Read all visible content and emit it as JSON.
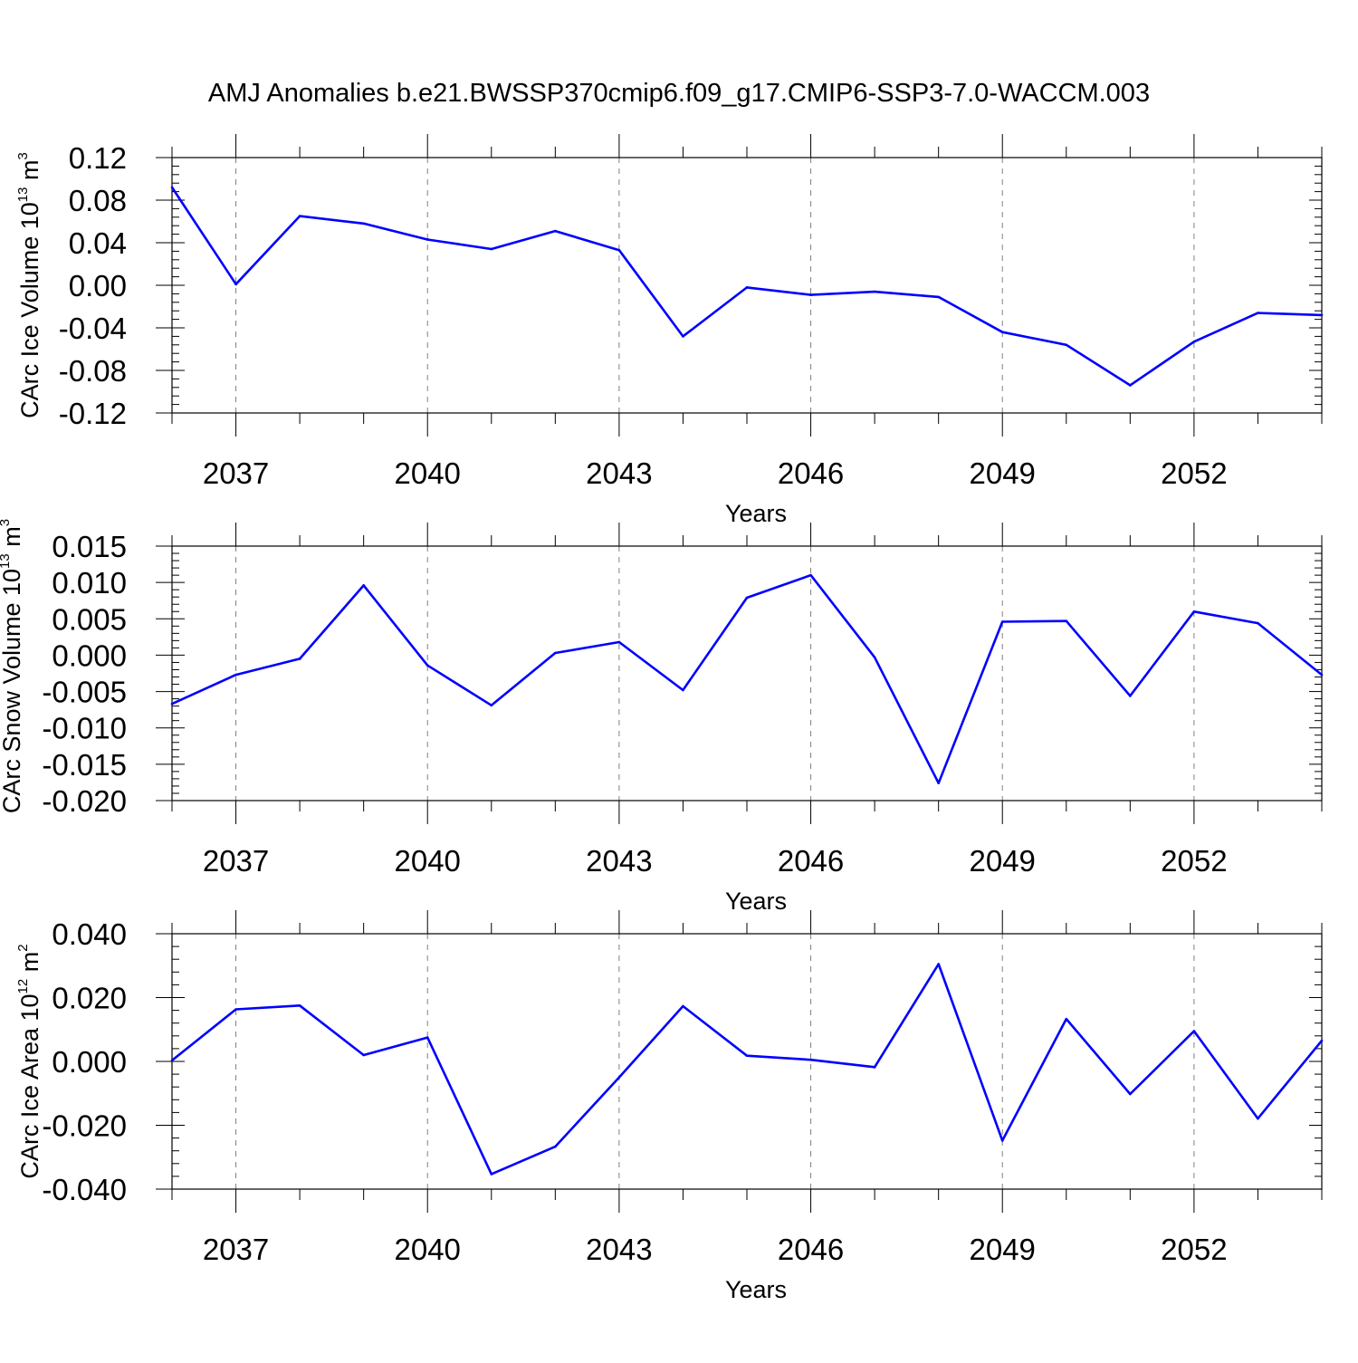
{
  "figure_title": "AMJ Anomalies b.e21.BWSSP370cmip6.f09_g17.CMIP6-SSP3-7.0-WACCM.003",
  "colors": {
    "line": "#0000ff",
    "axis": "#000000",
    "grid": "#808080"
  },
  "chart_data": [
    {
      "type": "line",
      "ylabel": {
        "text": "CArc Ice Volume 10",
        "exp": "13",
        "unit": " m",
        "unit_exp": "3"
      },
      "xlabel": "Years",
      "xlim": [
        2036,
        2054
      ],
      "ylim": [
        -0.12,
        0.12
      ],
      "yticks": [
        -0.12,
        -0.08,
        -0.04,
        0.0,
        0.04,
        0.08,
        0.12
      ],
      "ytick_labels": [
        "-0.12",
        "-0.08",
        "-0.04",
        "0.00",
        "0.04",
        "0.08",
        "0.12"
      ],
      "xticks": [
        2037,
        2040,
        2043,
        2046,
        2049,
        2052
      ],
      "xtick_labels": [
        "2037",
        "2040",
        "2043",
        "2046",
        "2049",
        "2052"
      ],
      "x": [
        2036,
        2037,
        2038,
        2039,
        2040,
        2041,
        2042,
        2043,
        2044,
        2045,
        2046,
        2047,
        2048,
        2049,
        2050,
        2051,
        2052,
        2053,
        2054
      ],
      "values": [
        0.092,
        0.001,
        0.065,
        0.058,
        0.043,
        0.034,
        0.051,
        0.033,
        -0.048,
        -0.002,
        -0.009,
        -0.006,
        -0.011,
        -0.044,
        -0.056,
        -0.094,
        -0.053,
        -0.026,
        -0.028
      ]
    },
    {
      "type": "line",
      "ylabel": {
        "text": "CArc Snow Volume 10",
        "exp": "13",
        "unit": " m",
        "unit_exp": "3"
      },
      "xlabel": "Years",
      "xlim": [
        2036,
        2054
      ],
      "ylim": [
        -0.02,
        0.015
      ],
      "yticks": [
        -0.02,
        -0.015,
        -0.01,
        -0.005,
        0.0,
        0.005,
        0.01,
        0.015
      ],
      "ytick_labels": [
        "-0.020",
        "-0.015",
        "-0.010",
        "-0.005",
        "0.000",
        "0.005",
        "0.010",
        "0.015"
      ],
      "xticks": [
        2037,
        2040,
        2043,
        2046,
        2049,
        2052
      ],
      "xtick_labels": [
        "2037",
        "2040",
        "2043",
        "2046",
        "2049",
        "2052"
      ],
      "x": [
        2036,
        2037,
        2038,
        2039,
        2040,
        2041,
        2042,
        2043,
        2044,
        2045,
        2046,
        2047,
        2048,
        2049,
        2050,
        2051,
        2052,
        2053,
        2054
      ],
      "values": [
        -0.0067,
        -0.0027,
        -0.0005,
        0.0096,
        -0.0014,
        -0.0069,
        0.0003,
        0.0018,
        -0.0048,
        0.0079,
        0.011,
        -0.0003,
        -0.0176,
        0.0046,
        0.0047,
        -0.0056,
        0.006,
        0.0044,
        -0.0027
      ]
    },
    {
      "type": "line",
      "ylabel": {
        "text": "CArc Ice Area 10",
        "exp": "12",
        "unit": " m",
        "unit_exp": "2"
      },
      "xlabel": "Years",
      "xlim": [
        2036,
        2054
      ],
      "ylim": [
        -0.04,
        0.04
      ],
      "yticks": [
        -0.04,
        -0.02,
        0.0,
        0.02,
        0.04
      ],
      "ytick_labels": [
        "-0.040",
        "-0.020",
        "0.000",
        "0.020",
        "0.040"
      ],
      "xticks": [
        2037,
        2040,
        2043,
        2046,
        2049,
        2052
      ],
      "xtick_labels": [
        "2037",
        "2040",
        "2043",
        "2046",
        "2049",
        "2052"
      ],
      "x": [
        2036,
        2037,
        2038,
        2039,
        2040,
        2041,
        2042,
        2043,
        2044,
        2045,
        2046,
        2047,
        2048,
        2049,
        2050,
        2051,
        2052,
        2053,
        2054
      ],
      "values": [
        0.0003,
        0.0163,
        0.0175,
        0.002,
        0.0075,
        -0.0353,
        -0.0267,
        -0.005,
        0.0173,
        0.0018,
        0.0005,
        -0.0018,
        0.0305,
        -0.0248,
        0.0133,
        -0.0102,
        0.0095,
        -0.0179,
        0.0065
      ]
    }
  ]
}
